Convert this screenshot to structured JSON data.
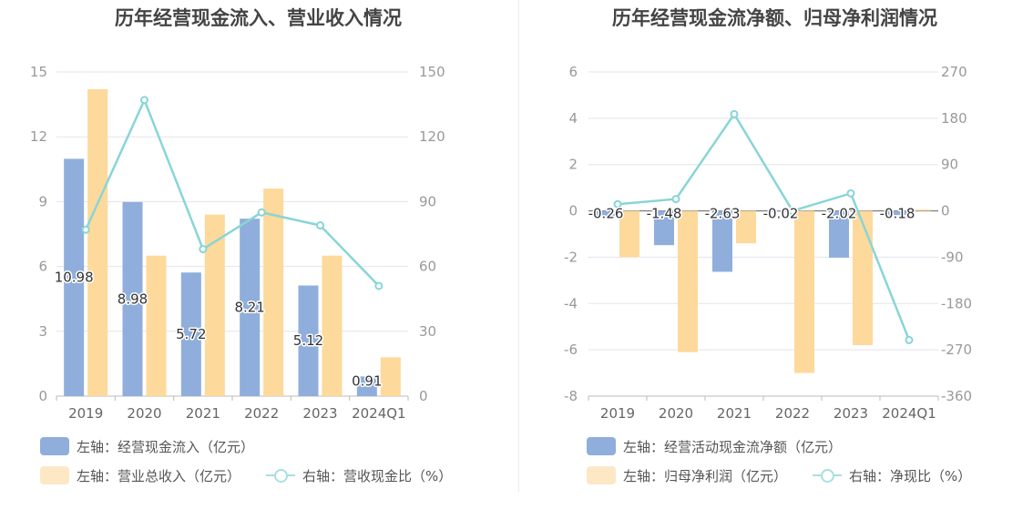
{
  "colors": {
    "bar1": "#8faedb",
    "bar2": "#fdd99b",
    "line": "#89d5d6",
    "grid": "#e3e3ee",
    "axis": "#bbbbbb"
  },
  "charts": [
    {
      "title": "历年经营现金流入、营业收入情况",
      "legend": {
        "bar1": "左轴：经营现金流入（亿元）",
        "bar2": "左轴：营业总收入（亿元）",
        "line": "右轴：营收现金比（%）"
      }
    },
    {
      "title": "历年经营现金流净额、归母净利润情况",
      "legend": {
        "bar1": "左轴：经营活动现金流净额（亿元）",
        "bar2": "左轴：归母净利润（亿元）",
        "line": "右轴：净现比（%）"
      }
    }
  ],
  "chart_data": [
    {
      "type": "bar",
      "title": "历年经营现金流入、营业收入情况",
      "categories": [
        "2019",
        "2020",
        "2021",
        "2022",
        "2023",
        "2024Q1"
      ],
      "left_axis": {
        "min": 0,
        "max": 15,
        "ticks": [
          0,
          3,
          6,
          9,
          12,
          15
        ]
      },
      "right_axis": {
        "min": 0,
        "max": 150,
        "ticks": [
          0,
          30,
          60,
          90,
          120,
          150
        ]
      },
      "series": [
        {
          "name": "左轴：经营现金流入（亿元）",
          "type": "bar",
          "axis": "left",
          "values": [
            10.98,
            8.98,
            5.72,
            8.21,
            5.12,
            0.91
          ],
          "labels": [
            "10.98",
            "8.98",
            "5.72",
            "8.21",
            "5.12",
            "0.91"
          ]
        },
        {
          "name": "左轴：营业总收入（亿元）",
          "type": "bar",
          "axis": "left",
          "values": [
            14.2,
            6.5,
            8.4,
            9.6,
            6.5,
            1.8
          ]
        },
        {
          "name": "右轴：营收现金比（%）",
          "type": "line",
          "axis": "right",
          "values": [
            77,
            137,
            68,
            85,
            79,
            51
          ]
        }
      ],
      "grid": true,
      "legend_position": "bottom-left"
    },
    {
      "type": "bar",
      "title": "历年经营现金流净额、归母净利润情况",
      "categories": [
        "2019",
        "2020",
        "2021",
        "2022",
        "2023",
        "2024Q1"
      ],
      "left_axis": {
        "min": -8,
        "max": 6,
        "ticks": [
          -8,
          -6,
          -4,
          -2,
          0,
          2,
          4,
          6
        ]
      },
      "right_axis": {
        "min": -360,
        "max": 270,
        "ticks": [
          -360,
          -270,
          -180,
          -90,
          0,
          90,
          180,
          270
        ]
      },
      "series": [
        {
          "name": "左轴：经营活动现金流净额（亿元）",
          "type": "bar",
          "axis": "left",
          "values": [
            -0.26,
            -1.48,
            -2.63,
            -0.02,
            -2.02,
            -0.18
          ],
          "labels": [
            "-0.26",
            "-1.48",
            "-2.63",
            "-0.02",
            "-2.02",
            "-0.18"
          ]
        },
        {
          "name": "左轴：归母净利润（亿元）",
          "type": "bar",
          "axis": "left",
          "values": [
            -2.0,
            -6.1,
            -1.4,
            -7.0,
            -5.8,
            0.05
          ]
        },
        {
          "name": "右轴：净现比（%）",
          "type": "line",
          "axis": "right",
          "values": [
            13,
            23,
            188,
            0,
            34,
            -251
          ]
        }
      ],
      "grid": true,
      "legend_position": "bottom-left"
    }
  ]
}
